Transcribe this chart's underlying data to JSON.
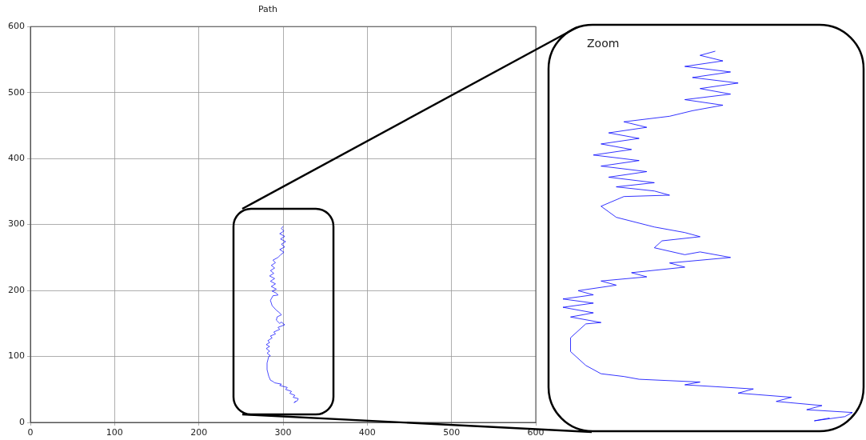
{
  "chart_data": {
    "type": "line",
    "title": "Path",
    "annotations": [
      "Zoom"
    ],
    "x": [
      315,
      313,
      317,
      318,
      312,
      314,
      308,
      310,
      303,
      305,
      296,
      298,
      290,
      288,
      285,
      283,
      281,
      281,
      283,
      285,
      281,
      284,
      280,
      284,
      280,
      284,
      282,
      287,
      285,
      291,
      289,
      296,
      294,
      302,
      298,
      296,
      292,
      293,
      298,
      296,
      292,
      287,
      285,
      288,
      294,
      292,
      287,
      292,
      286,
      291,
      285,
      290,
      284,
      289,
      285,
      290,
      286,
      291,
      288,
      294,
      297,
      301,
      296,
      302,
      298,
      303,
      297,
      302,
      296,
      301,
      298,
      300
    ],
    "values": [
      32,
      30,
      33,
      36,
      38,
      41,
      44,
      47,
      50,
      53,
      56,
      58,
      60,
      62,
      64,
      70,
      80,
      90,
      100,
      101,
      105,
      108,
      112,
      115,
      118,
      121,
      124,
      128,
      131,
      134,
      137,
      141,
      144,
      148,
      152,
      150,
      155,
      160,
      163,
      166,
      170,
      177,
      185,
      192,
      193,
      196,
      199,
      202,
      206,
      210,
      214,
      218,
      222,
      226,
      230,
      234,
      238,
      242,
      246,
      250,
      254,
      258,
      262,
      266,
      270,
      274,
      278,
      282,
      286,
      290,
      294,
      297
    ],
    "color": "#0000ff",
    "xlim": [
      0,
      600
    ],
    "ylim": [
      0,
      600
    ],
    "xticks": [
      0,
      100,
      200,
      300,
      400,
      500,
      600
    ],
    "yticks": [
      0,
      100,
      200,
      300,
      400,
      500,
      600
    ],
    "grid": true,
    "marker": "none",
    "line_style": "solid"
  }
}
